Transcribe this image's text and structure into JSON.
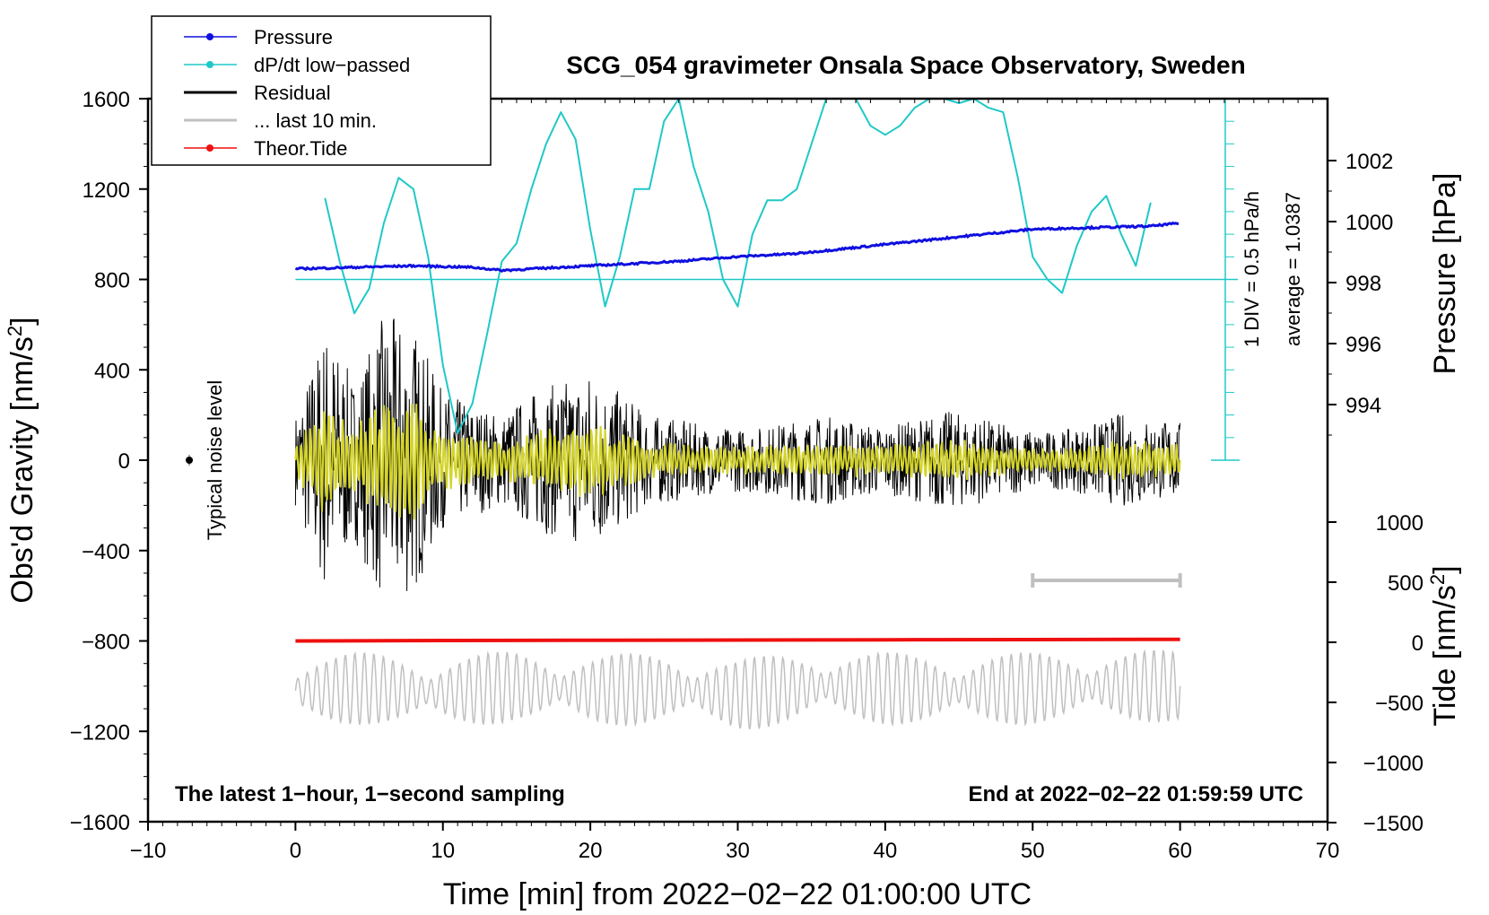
{
  "chart_data": {
    "type": "line",
    "title": "SCG_054 gravimeter Onsala Space Observatory, Sweden",
    "xlabel": "Time [min] from 2022−02−22 01:00:00 UTC",
    "ylabel": "Obs'd Gravity [nm/s²]",
    "ylabel_main": "Obs'd Gravity [nm/s",
    "ylabel_sup": "2",
    "ylabel_close": "]",
    "xlim": [
      -10,
      70
    ],
    "ylim": [
      -1600,
      1600
    ],
    "x_ticks": [
      "−10",
      "0",
      "10",
      "20",
      "30",
      "40",
      "50",
      "60",
      "70"
    ],
    "y_ticks": [
      "1600",
      "1200",
      "800",
      "400",
      "0",
      "−400",
      "−800",
      "−1200",
      "−1600"
    ],
    "pressure_axis": {
      "label": "Pressure [hPa]",
      "ticks": [
        "1002",
        "1000",
        "998",
        "996",
        "994"
      ],
      "tick_values": [
        1002,
        1000,
        998,
        996,
        994
      ]
    },
    "tide_axis": {
      "label_main": "Tide [nm/s",
      "label_sup": "2",
      "label_close": "]",
      "ticks": [
        "1000",
        "500",
        "0",
        "−500",
        "−1000",
        "−1500"
      ],
      "tick_values": [
        1000,
        500,
        0,
        -500,
        -1000,
        -1500
      ]
    },
    "dpdt_scale": {
      "div_label": "1 DIV = 0.5 hPa/h",
      "average_label": "average = 1.0387"
    },
    "noise_label": "Typical noise level",
    "footer_left": "The latest 1−hour, 1−second sampling",
    "footer_right": "End at 2022−02−22 01:59:59 UTC",
    "legend": [
      {
        "label": "Pressure",
        "color": "#1010e0",
        "marker": true
      },
      {
        "label": "dP/dt low−passed",
        "color": "#20c8c8",
        "marker": true
      },
      {
        "label": "Residual",
        "color": "#000000",
        "marker": false
      },
      {
        "label": "... last 10 min.",
        "color": "#c0c0c0",
        "marker": false
      },
      {
        "label": "Theor.Tide",
        "color": "#ee1010",
        "marker": true
      }
    ],
    "series": [
      {
        "name": "Pressure",
        "units": "hPa",
        "color": "#1010e0",
        "x": [
          0,
          4,
          8,
          12,
          14,
          18,
          22,
          26,
          30,
          34,
          38,
          42,
          46,
          50,
          54,
          58,
          60
        ],
        "values": [
          998.45,
          998.5,
          998.55,
          998.5,
          998.4,
          998.5,
          998.6,
          998.7,
          998.85,
          998.95,
          999.15,
          999.35,
          999.55,
          999.75,
          999.8,
          999.85,
          999.95
        ]
      },
      {
        "name": "dP/dt low-passed",
        "units": "gravity-scale",
        "color": "#20c8c8",
        "x": [
          2,
          3,
          4,
          5,
          6,
          7,
          8,
          9,
          10,
          11,
          12,
          13,
          14,
          15,
          16,
          17,
          18,
          19,
          20,
          21,
          22,
          23,
          24,
          25,
          26,
          27,
          28,
          29,
          30,
          31,
          32,
          33,
          34,
          35,
          36,
          37,
          38,
          39,
          40,
          41,
          42,
          43,
          44,
          45,
          46,
          47,
          48,
          49,
          50,
          51,
          52,
          53,
          54,
          55,
          56,
          57,
          58
        ],
        "values": [
          1160,
          880,
          650,
          760,
          1050,
          1250,
          1200,
          900,
          420,
          120,
          250,
          560,
          880,
          960,
          1200,
          1400,
          1540,
          1420,
          1020,
          680,
          900,
          1200,
          1200,
          1500,
          1600,
          1300,
          1100,
          800,
          680,
          1000,
          1150,
          1150,
          1200,
          1400,
          1600,
          1700,
          1600,
          1480,
          1440,
          1480,
          1560,
          1600,
          1640,
          1580,
          1640,
          1560,
          1540,
          1250,
          900,
          800,
          740,
          950,
          1100,
          1170,
          1000,
          860,
          1140
        ]
      },
      {
        "name": "Residual",
        "units": "nm/s2",
        "color": "#000000",
        "x": [
          0,
          2,
          4,
          6,
          8,
          10,
          12,
          14,
          16,
          18,
          20,
          22,
          24,
          26,
          28,
          30,
          32,
          34,
          36,
          38,
          40,
          42,
          44,
          46,
          48,
          50,
          52,
          54,
          56,
          58,
          60
        ],
        "values": [
          200,
          600,
          350,
          650,
          600,
          300,
          250,
          200,
          300,
          350,
          400,
          300,
          200,
          180,
          150,
          140,
          150,
          180,
          200,
          170,
          150,
          180,
          220,
          200,
          160,
          130,
          130,
          160,
          210,
          180,
          170
        ]
      },
      {
        "name": "... last 10 min.",
        "units": "nm/s2",
        "color": "#c0c0c0",
        "x": [
          0,
          5,
          10,
          15,
          20,
          25,
          30,
          35,
          40,
          45,
          50,
          55,
          60
        ],
        "values": [
          -1020,
          -1010,
          -1030,
          -1000,
          -1020,
          -1010,
          -1040,
          -1000,
          -1010,
          -1020,
          -1010,
          -1000,
          -1000
        ]
      },
      {
        "name": "Theor.Tide",
        "units": "nm/s2",
        "color": "#ee1010",
        "x": [
          0,
          10,
          20,
          30,
          40,
          50,
          60
        ],
        "values": [
          -800,
          -798,
          -797,
          -796,
          -795,
          -794,
          -793
        ]
      }
    ]
  }
}
